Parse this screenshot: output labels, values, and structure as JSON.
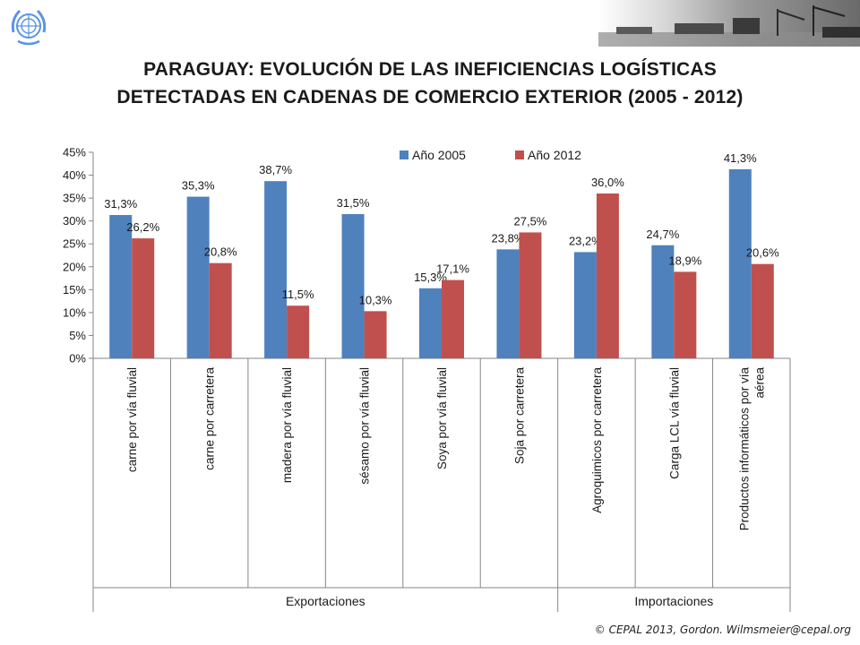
{
  "header": {
    "title_line1": "PARAGUAY: EVOLUCIÓN DE LAS INEFICIENCIAS LOGÍSTICAS",
    "title_line2": "DETECTADAS EN CADENAS DE COMERCIO EXTERIOR (2005 - 2012)",
    "logo_icon": "un-emblem-icon",
    "photo_strip": "port-photos-image"
  },
  "footer": {
    "credit": "© CEPAL 2013, Gordon. Wilmsmeier@cepal.org"
  },
  "colors": {
    "series_2005": "#4F81BD",
    "series_2012": "#C0504D",
    "axis": "#868686",
    "text": "#1a1a1a"
  },
  "chart_data": {
    "type": "bar",
    "title": "PARAGUAY: EVOLUCIÓN DE LAS INEFICIENCIAS LOGÍSTICAS DETECTADAS EN CADENAS DE COMERCIO EXTERIOR (2005 - 2012)",
    "categories": [
      "carne por vía fluvial",
      "carne por carretera",
      "madera por vía fluvial",
      "sésamo por vía fluvial",
      "Soya por vía fluvial",
      "Soja por carretera",
      "Agroquimicos por carretera",
      "Carga LCL vía fluvial",
      "Productos informáticos por vía aérea"
    ],
    "category_lines": [
      [
        "carne por vía fluvial"
      ],
      [
        "carne por carretera"
      ],
      [
        "madera por vía fluvial"
      ],
      [
        "sésamo por vía fluvial"
      ],
      [
        "Soya por vía fluvial"
      ],
      [
        "Soja por carretera"
      ],
      [
        "Agroquimicos por carretera"
      ],
      [
        "Carga LCL vía fluvial"
      ],
      [
        "Productos informáticos por vía",
        "aérea"
      ]
    ],
    "groups": [
      {
        "name": "Exportaciones",
        "count": 6
      },
      {
        "name": "Importaciones",
        "count": 3
      }
    ],
    "series": [
      {
        "name": "Año 2005",
        "values": [
          31.3,
          35.3,
          38.7,
          31.5,
          15.3,
          23.8,
          23.2,
          24.7,
          41.3
        ],
        "labels": [
          "31,3%",
          "35,3%",
          "38,7%",
          "31,5%",
          "15,3%",
          "23,8%",
          "23,2%",
          "24,7%",
          "41,3%"
        ]
      },
      {
        "name": "Año 2012",
        "values": [
          26.2,
          20.8,
          11.5,
          10.3,
          17.1,
          27.5,
          36.0,
          18.9,
          20.6
        ],
        "labels": [
          "26,2%",
          "20,8%",
          "11,5%",
          "10,3%",
          "17,1%",
          "27,5%",
          "36,0%",
          "18,9%",
          "20,6%"
        ]
      }
    ],
    "ylim": [
      0,
      45
    ],
    "yticks": [
      0,
      5,
      10,
      15,
      20,
      25,
      30,
      35,
      40,
      45
    ],
    "ytick_labels": [
      "0%",
      "5%",
      "10%",
      "15%",
      "20%",
      "25%",
      "30%",
      "35%",
      "40%",
      "45%"
    ],
    "xlabel": "",
    "ylabel": "",
    "legend_position": "top-center",
    "grid": false
  }
}
